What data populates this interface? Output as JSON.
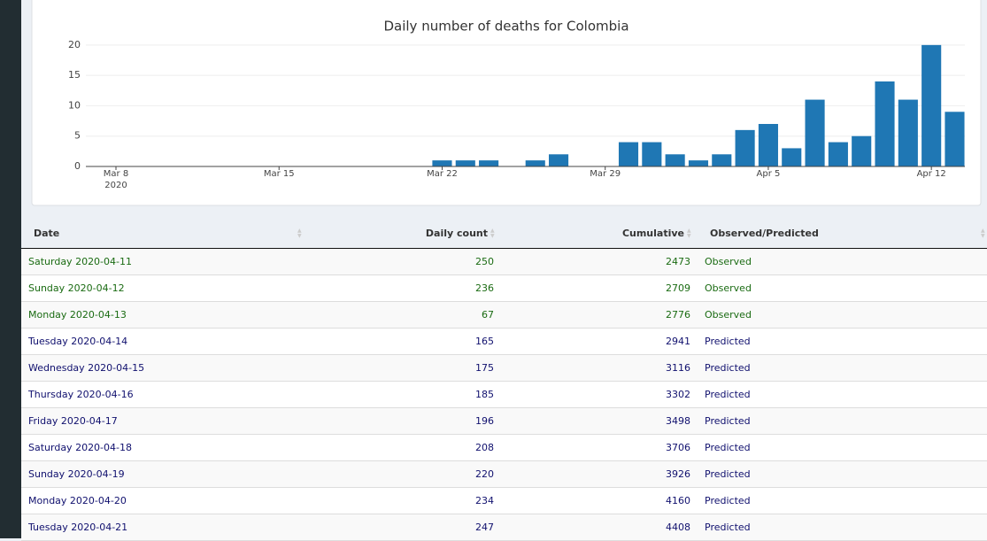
{
  "chart_data": {
    "type": "bar",
    "title": "Daily number of deaths for Colombia",
    "x": [
      "2020-03-22",
      "2020-03-23",
      "2020-03-24",
      "2020-03-26",
      "2020-03-27",
      "2020-03-30",
      "2020-03-31",
      "2020-04-01",
      "2020-04-02",
      "2020-04-03",
      "2020-04-04",
      "2020-04-05",
      "2020-04-06",
      "2020-04-07",
      "2020-04-08",
      "2020-04-09",
      "2020-04-10",
      "2020-04-11",
      "2020-04-12",
      "2020-04-13"
    ],
    "values": [
      1,
      1,
      1,
      1,
      2,
      4,
      4,
      2,
      1,
      2,
      6,
      7,
      3,
      11,
      4,
      5,
      14,
      11,
      20,
      9
    ],
    "color": "#1f77b4",
    "xlim": [
      "2020-03-06T17:00",
      "2020-04-13T10:30"
    ],
    "xticks": [
      {
        "value": "2020-03-08",
        "label": "Mar 8"
      },
      {
        "value": "2020-03-15",
        "label": "Mar 15"
      },
      {
        "value": "2020-03-22",
        "label": "Mar 22"
      },
      {
        "value": "2020-03-29",
        "label": "Mar 29"
      },
      {
        "value": "2020-04-05",
        "label": "Apr 5"
      },
      {
        "value": "2020-04-12",
        "label": "Apr 12"
      }
    ],
    "x_tick_year": "2020",
    "ylim": [
      0,
      21
    ],
    "yticks": [
      0,
      5,
      10,
      15,
      20
    ],
    "grid": true
  },
  "table": {
    "headers": [
      "Date",
      "Daily count",
      "Cumulative",
      "Observed/Predicted"
    ],
    "rows": [
      {
        "color": "#1a6b12",
        "cells": [
          "Saturday 2020-04-11",
          250,
          2473,
          "Observed"
        ]
      },
      {
        "color": "#1a6b12",
        "cells": [
          "Sunday 2020-04-12",
          236,
          2709,
          "Observed"
        ]
      },
      {
        "color": "#1a6b12",
        "cells": [
          "Monday 2020-04-13",
          67,
          2776,
          "Observed"
        ]
      },
      {
        "color": "#10106e",
        "cells": [
          "Tuesday 2020-04-14",
          165,
          2941,
          "Predicted"
        ]
      },
      {
        "color": "#10106e",
        "cells": [
          "Wednesday 2020-04-15",
          175,
          3116,
          "Predicted"
        ]
      },
      {
        "color": "#10106e",
        "cells": [
          "Thursday 2020-04-16",
          185,
          3302,
          "Predicted"
        ]
      },
      {
        "color": "#10106e",
        "cells": [
          "Friday 2020-04-17",
          196,
          3498,
          "Predicted"
        ]
      },
      {
        "color": "#10106e",
        "cells": [
          "Saturday 2020-04-18",
          208,
          3706,
          "Predicted"
        ]
      },
      {
        "color": "#10106e",
        "cells": [
          "Sunday 2020-04-19",
          220,
          3926,
          "Predicted"
        ]
      },
      {
        "color": "#10106e",
        "cells": [
          "Monday 2020-04-20",
          234,
          4160,
          "Predicted"
        ]
      },
      {
        "color": "#10106e",
        "cells": [
          "Tuesday 2020-04-21",
          247,
          4408,
          "Predicted"
        ]
      }
    ]
  }
}
